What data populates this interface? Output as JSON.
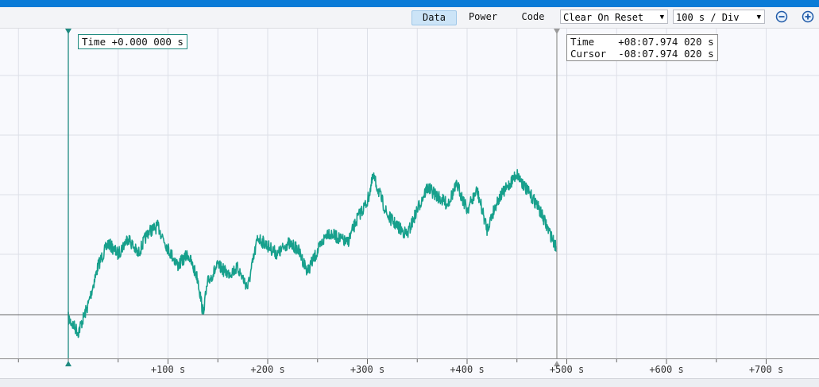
{
  "toolbar": {
    "tabs": [
      {
        "label": "Data",
        "active": true
      },
      {
        "label": "Power",
        "active": false
      },
      {
        "label": "Code",
        "active": false
      }
    ],
    "reset_mode": "Clear On Reset",
    "time_div": "100 s / Div",
    "zoom_out_icon": "minus-circle-icon",
    "zoom_in_icon": "plus-circle-icon"
  },
  "cursor_left": {
    "label": "Time +0.000 000 s",
    "color": "#1e8a80"
  },
  "cursor_right": {
    "time_line": "Time    +08:07.974 020 s",
    "cursor_line": "Cursor  -08:07.974 020 s",
    "color": "#8a8a8a"
  },
  "x_axis": {
    "tick_labels": [
      "+100 s",
      "+200 s",
      "+300 s",
      "+400 s",
      "+500 s",
      "+600 s",
      "+700 s"
    ]
  },
  "colors": {
    "trace": "#17a08c",
    "topbar": "#0a7bd7",
    "active_tab": "#cce4f7"
  },
  "chart_data": {
    "type": "line",
    "title": "",
    "xlabel": "",
    "ylabel": "",
    "xlim": [
      -68,
      710
    ],
    "ylim": [
      0,
      100
    ],
    "grid": true,
    "x": [
      0,
      10,
      20,
      30,
      40,
      50,
      60,
      70,
      80,
      90,
      100,
      110,
      120,
      130,
      135,
      140,
      150,
      160,
      170,
      180,
      190,
      200,
      210,
      220,
      230,
      240,
      250,
      260,
      270,
      280,
      290,
      300,
      306,
      320,
      330,
      340,
      350,
      360,
      370,
      380,
      390,
      400,
      410,
      420,
      430,
      440,
      450,
      460,
      470,
      480,
      490
    ],
    "y": [
      13,
      8,
      18,
      32,
      40,
      36,
      42,
      36,
      44,
      46,
      38,
      32,
      36,
      27,
      15,
      26,
      32,
      29,
      31,
      24,
      42,
      39,
      36,
      40,
      38,
      30,
      37,
      44,
      42,
      40,
      49,
      55,
      64,
      50,
      46,
      43,
      52,
      60,
      57,
      54,
      61,
      52,
      59,
      45,
      55,
      60,
      65,
      59,
      54,
      46,
      38
    ]
  }
}
